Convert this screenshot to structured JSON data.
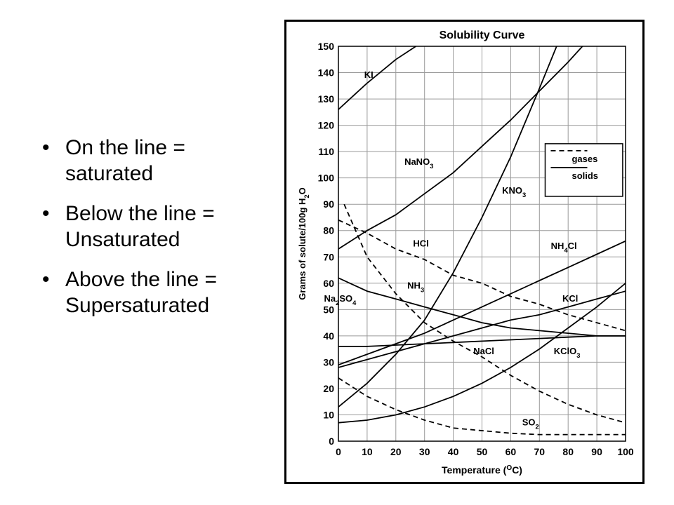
{
  "slide": {
    "bullets": [
      {
        "text": "On the line = saturated"
      },
      {
        "text": "Below the line = Unsaturated"
      },
      {
        "text": "Above the line = Supersaturated"
      }
    ]
  },
  "chart_data": {
    "type": "line",
    "title": "Solubility Curve",
    "xlabel": "Temperature (°C)",
    "xlabel_parts": {
      "pre": "Temperature (",
      "sup": "O",
      "post": "C)"
    },
    "ylabel": "Grams of solute/100g H₂O",
    "ylabel_parts": {
      "pre": "Grams of solute/100g H",
      "sub": "2",
      "post": "O"
    },
    "xlim": [
      0,
      100
    ],
    "ylim": [
      0,
      150
    ],
    "xticks": [
      0,
      10,
      20,
      30,
      40,
      50,
      60,
      70,
      80,
      90,
      100
    ],
    "yticks": [
      0,
      10,
      20,
      30,
      40,
      50,
      60,
      70,
      80,
      90,
      100,
      110,
      120,
      130,
      140,
      150
    ],
    "grid": true,
    "legend": {
      "position": "top-right",
      "entries": [
        {
          "label": "gases",
          "style": "dashed"
        },
        {
          "label": "solids",
          "style": "solid"
        }
      ]
    },
    "series": [
      {
        "name": "KI",
        "label_parts": [
          {
            "t": "KI"
          }
        ],
        "style": "solid",
        "label_at": [
          9,
          138
        ],
        "points": [
          [
            0,
            126
          ],
          [
            10,
            136
          ],
          [
            20,
            145
          ],
          [
            27,
            150
          ]
        ]
      },
      {
        "name": "NaNO3",
        "label_parts": [
          {
            "t": "NaNO"
          },
          {
            "t": "3",
            "sub": true
          }
        ],
        "style": "solid",
        "label_at": [
          23,
          105
        ],
        "points": [
          [
            0,
            73
          ],
          [
            10,
            80
          ],
          [
            20,
            86
          ],
          [
            30,
            94
          ],
          [
            40,
            102
          ],
          [
            50,
            112
          ],
          [
            60,
            122
          ],
          [
            70,
            133
          ],
          [
            80,
            144
          ],
          [
            85,
            150
          ]
        ]
      },
      {
        "name": "KNO3",
        "label_parts": [
          {
            "t": "KNO"
          },
          {
            "t": "3",
            "sub": true
          }
        ],
        "style": "solid",
        "label_at": [
          57,
          94
        ],
        "points": [
          [
            0,
            13
          ],
          [
            10,
            22
          ],
          [
            20,
            33
          ],
          [
            30,
            46
          ],
          [
            40,
            64
          ],
          [
            50,
            85
          ],
          [
            60,
            108
          ],
          [
            70,
            134
          ],
          [
            76,
            150
          ]
        ]
      },
      {
        "name": "HCl",
        "label_parts": [
          {
            "t": "HCl"
          }
        ],
        "style": "dashed",
        "label_at": [
          26,
          74
        ],
        "points": [
          [
            0,
            84
          ],
          [
            10,
            79
          ],
          [
            20,
            73
          ],
          [
            30,
            69
          ],
          [
            40,
            63
          ],
          [
            50,
            60
          ],
          [
            60,
            55
          ],
          [
            70,
            52
          ],
          [
            80,
            48
          ],
          [
            90,
            45
          ],
          [
            100,
            42
          ]
        ]
      },
      {
        "name": "NH4Cl",
        "label_parts": [
          {
            "t": "NH"
          },
          {
            "t": "4",
            "sub": true
          },
          {
            "t": "Cl"
          }
        ],
        "style": "solid",
        "label_at": [
          74,
          73
        ],
        "points": [
          [
            0,
            29
          ],
          [
            10,
            33
          ],
          [
            20,
            37
          ],
          [
            30,
            41
          ],
          [
            40,
            46
          ],
          [
            50,
            51
          ],
          [
            60,
            56
          ],
          [
            70,
            61
          ],
          [
            80,
            66
          ],
          [
            90,
            71
          ],
          [
            100,
            76
          ]
        ]
      },
      {
        "name": "NH3",
        "label_parts": [
          {
            "t": "NH"
          },
          {
            "t": "3",
            "sub": true
          }
        ],
        "style": "dashed",
        "label_at": [
          24,
          58
        ],
        "points": [
          [
            2,
            90
          ],
          [
            10,
            70
          ],
          [
            20,
            56
          ],
          [
            30,
            45
          ],
          [
            40,
            38
          ],
          [
            50,
            32
          ],
          [
            60,
            25
          ],
          [
            70,
            19
          ],
          [
            80,
            14
          ],
          [
            90,
            10
          ],
          [
            100,
            7
          ]
        ]
      },
      {
        "name": "KCl",
        "label_parts": [
          {
            "t": "KCl"
          }
        ],
        "style": "solid",
        "label_at": [
          78,
          53
        ],
        "points": [
          [
            0,
            28
          ],
          [
            10,
            31
          ],
          [
            20,
            34
          ],
          [
            30,
            37
          ],
          [
            40,
            40
          ],
          [
            50,
            43
          ],
          [
            60,
            46
          ],
          [
            70,
            48
          ],
          [
            80,
            51
          ],
          [
            90,
            54
          ],
          [
            100,
            57
          ]
        ]
      },
      {
        "name": "Na2SO4",
        "label_parts": [
          {
            "t": "Na"
          },
          {
            "t": "2",
            "sub": true
          },
          {
            "t": "SO"
          },
          {
            "t": "4",
            "sub": true
          }
        ],
        "style": "solid",
        "label_at": [
          -5,
          53
        ],
        "points": [
          [
            0,
            62
          ],
          [
            10,
            57
          ],
          [
            20,
            54
          ],
          [
            30,
            51
          ],
          [
            40,
            48
          ],
          [
            50,
            45
          ],
          [
            60,
            43
          ],
          [
            70,
            42
          ],
          [
            80,
            41
          ],
          [
            90,
            40
          ],
          [
            100,
            40
          ]
        ]
      },
      {
        "name": "NaCl",
        "label_parts": [
          {
            "t": "NaCl"
          }
        ],
        "style": "solid",
        "label_at": [
          47,
          33
        ],
        "points": [
          [
            0,
            36
          ],
          [
            10,
            36
          ],
          [
            20,
            36.5
          ],
          [
            30,
            37
          ],
          [
            40,
            37.5
          ],
          [
            50,
            38
          ],
          [
            60,
            38.5
          ],
          [
            70,
            39
          ],
          [
            80,
            39.5
          ],
          [
            90,
            40
          ],
          [
            100,
            40
          ]
        ]
      },
      {
        "name": "KClO3",
        "label_parts": [
          {
            "t": "KClO"
          },
          {
            "t": "3",
            "sub": true
          }
        ],
        "style": "solid",
        "label_at": [
          75,
          33
        ],
        "points": [
          [
            0,
            7
          ],
          [
            10,
            8
          ],
          [
            20,
            10
          ],
          [
            30,
            13
          ],
          [
            40,
            17
          ],
          [
            50,
            22
          ],
          [
            60,
            28
          ],
          [
            70,
            35
          ],
          [
            80,
            43
          ],
          [
            90,
            51
          ],
          [
            100,
            60
          ]
        ]
      },
      {
        "name": "SO2",
        "label_parts": [
          {
            "t": "SO"
          },
          {
            "t": "2",
            "sub": true
          }
        ],
        "style": "dashed",
        "label_at": [
          64,
          6
        ],
        "points": [
          [
            0,
            24
          ],
          [
            10,
            17
          ],
          [
            20,
            12
          ],
          [
            30,
            8
          ],
          [
            40,
            5
          ],
          [
            50,
            4
          ],
          [
            60,
            3
          ],
          [
            70,
            2.5
          ],
          [
            80,
            2.5
          ],
          [
            90,
            2.5
          ],
          [
            100,
            2.5
          ]
        ]
      }
    ]
  }
}
